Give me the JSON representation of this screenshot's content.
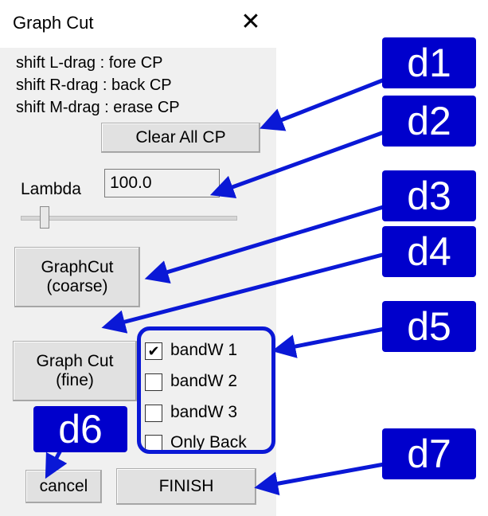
{
  "window": {
    "title": "Graph Cut",
    "close_icon": "close-icon"
  },
  "instructions": [
    "shift L-drag : fore CP",
    "shift R-drag : back CP",
    "shift M-drag : erase CP"
  ],
  "buttons": {
    "clear_all": "Clear All CP",
    "graphcut_coarse_line1": "GraphCut",
    "graphcut_coarse_line2": "(coarse)",
    "graphcut_fine_line1": "Graph Cut",
    "graphcut_fine_line2": "(fine)",
    "cancel": "cancel",
    "finish": "FINISH"
  },
  "lambda": {
    "label": "Lambda",
    "value": "100.0",
    "slider_level": 0.1
  },
  "checkboxes": [
    {
      "label": "bandW 1",
      "checked": true
    },
    {
      "label": "bandW 2",
      "checked": false
    },
    {
      "label": "bandW 3",
      "checked": false
    },
    {
      "label": "Only Back",
      "checked": false
    }
  ],
  "annotations": {
    "d1": "d1",
    "d2": "d2",
    "d3": "d3",
    "d4": "d4",
    "d5": "d5",
    "d6": "d6",
    "d7": "d7",
    "color": "#0000cc"
  }
}
